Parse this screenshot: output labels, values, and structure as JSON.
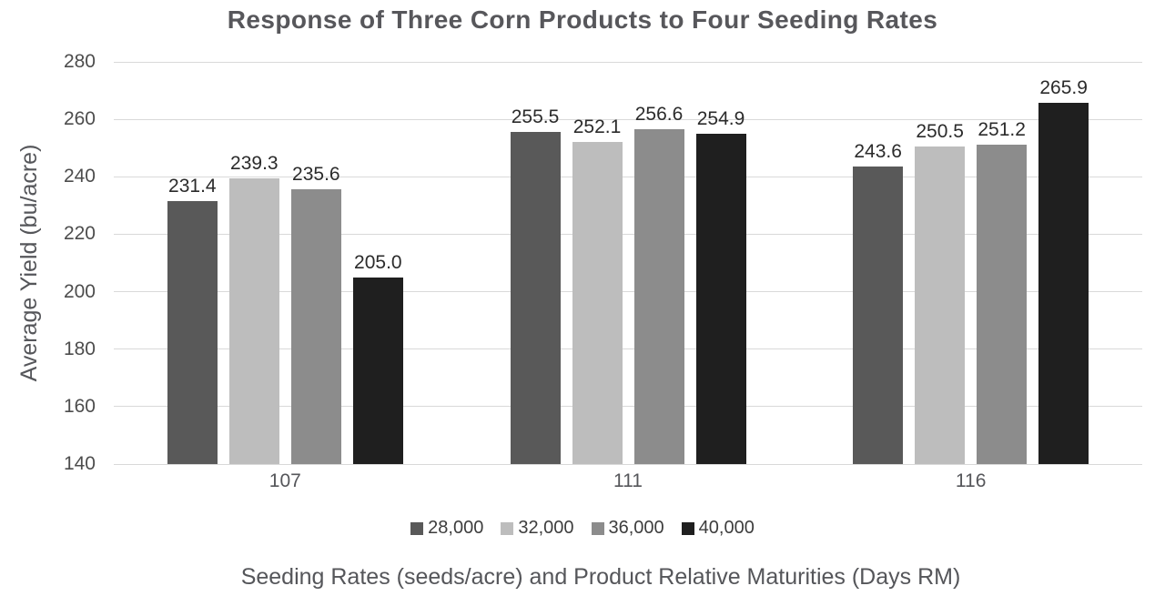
{
  "chart_data": {
    "type": "bar",
    "title": "Response of Three Corn Products to Four Seeding Rates",
    "xlabel": "Seeding Rates (seeds/acre) and Product Relative Maturities (Days RM)",
    "ylabel": "Average Yield (bu/acre)",
    "categories": [
      "107",
      "111",
      "116"
    ],
    "series": [
      {
        "name": "28,000",
        "color": "#595959",
        "values": [
          231.4,
          255.5,
          243.6
        ]
      },
      {
        "name": "32,000",
        "color": "#bdbdbd",
        "values": [
          239.3,
          252.1,
          250.5
        ]
      },
      {
        "name": "36,000",
        "color": "#8c8c8c",
        "values": [
          235.6,
          256.6,
          251.2
        ]
      },
      {
        "name": "40,000",
        "color": "#1f1f1f",
        "values": [
          205.0,
          254.9,
          265.9
        ]
      }
    ],
    "yticks": [
      140,
      160,
      180,
      200,
      220,
      240,
      260,
      280
    ],
    "ylim": [
      140,
      280
    ],
    "grid": "horizontal",
    "legend_position": "bottom",
    "value_labels": "above-bars",
    "value_label_decimals": 1
  },
  "style": {
    "background": "#ffffff",
    "gridline_color": "#d9d9d9",
    "title_color": "#57575b",
    "axis_title_color": "#55565a",
    "tick_label_color": "#4d4d4d",
    "value_label_color": "#2b2b2b",
    "category_label_color": "#55565a",
    "legend_label_color": "#3d3d3d"
  }
}
